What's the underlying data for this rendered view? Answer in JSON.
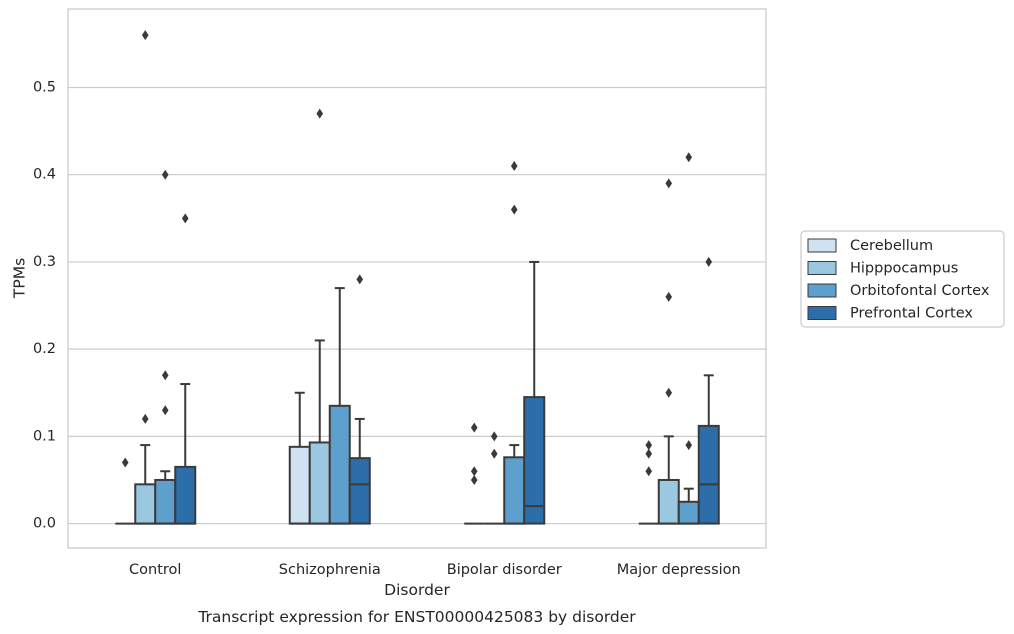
{
  "chart_data": {
    "type": "box",
    "title": "",
    "caption": "Transcript expression for ENST00000425083 by disorder",
    "xlabel": "Disorder",
    "ylabel": "TPMs",
    "ylim": [
      -0.028,
      0.59
    ],
    "yticks": [
      0.0,
      0.1,
      0.2,
      0.3,
      0.4,
      0.5
    ],
    "ytick_labels": [
      "0.0",
      "0.1",
      "0.2",
      "0.3",
      "0.4",
      "0.5"
    ],
    "grid": "horizontal",
    "legend_position": "right",
    "categories": [
      "Control",
      "Schizophrenia",
      "Bipolar disorder",
      "Major depression"
    ],
    "series": [
      {
        "name": "Cerebellum",
        "color": "#d0e1f2",
        "boxes": [
          {
            "q1": 0.0,
            "median": 0.0,
            "q3": 0.0,
            "whisker_low": 0.0,
            "whisker_high": 0.0,
            "outliers": [
              0.07
            ]
          },
          {
            "q1": 0.0,
            "median": 0.0,
            "q3": 0.088,
            "whisker_low": 0.0,
            "whisker_high": 0.15,
            "outliers": []
          },
          {
            "q1": 0.0,
            "median": 0.0,
            "q3": 0.0,
            "whisker_low": 0.0,
            "whisker_high": 0.0,
            "outliers": [
              0.05,
              0.06,
              0.11
            ]
          },
          {
            "q1": 0.0,
            "median": 0.0,
            "q3": 0.0,
            "whisker_low": 0.0,
            "whisker_high": 0.0,
            "outliers": [
              0.06,
              0.08,
              0.09
            ]
          }
        ]
      },
      {
        "name": "Hipppocampus",
        "color": "#9ac8e0",
        "boxes": [
          {
            "q1": 0.0,
            "median": 0.0,
            "q3": 0.045,
            "whisker_low": 0.0,
            "whisker_high": 0.09,
            "outliers": [
              0.12,
              0.56
            ]
          },
          {
            "q1": 0.0,
            "median": 0.0,
            "q3": 0.093,
            "whisker_low": 0.0,
            "whisker_high": 0.21,
            "outliers": [
              0.47
            ]
          },
          {
            "q1": 0.0,
            "median": 0.0,
            "q3": 0.0,
            "whisker_low": 0.0,
            "whisker_high": 0.0,
            "outliers": [
              0.08,
              0.1
            ]
          },
          {
            "q1": 0.0,
            "median": 0.0,
            "q3": 0.05,
            "whisker_low": 0.0,
            "whisker_high": 0.1,
            "outliers": [
              0.15,
              0.26,
              0.39
            ]
          }
        ]
      },
      {
        "name": "Orbitofontal Cortex",
        "color": "#5d9fcd",
        "boxes": [
          {
            "q1": 0.0,
            "median": 0.0,
            "q3": 0.05,
            "whisker_low": 0.0,
            "whisker_high": 0.06,
            "outliers": [
              0.13,
              0.17,
              0.4
            ]
          },
          {
            "q1": 0.0,
            "median": 0.0,
            "q3": 0.135,
            "whisker_low": 0.0,
            "whisker_high": 0.27,
            "outliers": []
          },
          {
            "q1": 0.0,
            "median": 0.0,
            "q3": 0.076,
            "whisker_low": 0.0,
            "whisker_high": 0.09,
            "outliers": [
              0.36,
              0.41
            ]
          },
          {
            "q1": 0.0,
            "median": 0.0,
            "q3": 0.025,
            "whisker_low": 0.0,
            "whisker_high": 0.04,
            "outliers": [
              0.09,
              0.42
            ]
          }
        ]
      },
      {
        "name": "Prefrontal Cortex",
        "color": "#2b6ea9",
        "boxes": [
          {
            "q1": 0.0,
            "median": 0.0,
            "q3": 0.065,
            "whisker_low": 0.0,
            "whisker_high": 0.16,
            "outliers": [
              0.35
            ]
          },
          {
            "q1": 0.0,
            "median": 0.045,
            "q3": 0.075,
            "whisker_low": 0.0,
            "whisker_high": 0.12,
            "outliers": [
              0.28
            ]
          },
          {
            "q1": 0.0,
            "median": 0.02,
            "q3": 0.145,
            "whisker_low": 0.0,
            "whisker_high": 0.3,
            "outliers": []
          },
          {
            "q1": 0.0,
            "median": 0.045,
            "q3": 0.112,
            "whisker_low": 0.0,
            "whisker_high": 0.17,
            "outliers": [
              0.3
            ]
          }
        ]
      }
    ]
  },
  "colors": {
    "box_edge": "#3a3a3a",
    "grid": "#cccccc",
    "frame": "#cccccc",
    "text": "#262626"
  }
}
